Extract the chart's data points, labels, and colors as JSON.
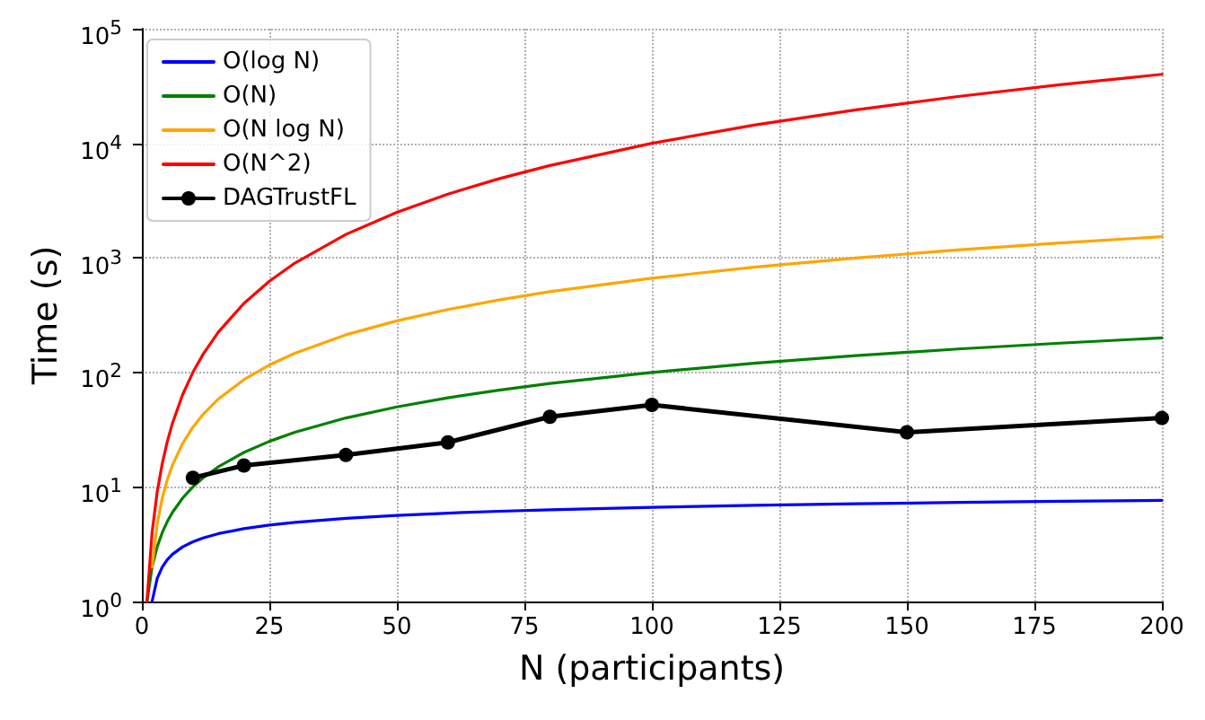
{
  "chart_data": {
    "type": "line",
    "xlabel": "N (participants)",
    "ylabel": "Time (s)",
    "log": "y",
    "grid": true,
    "legend": "top left",
    "marker": "none",
    "line_style": "solid",
    "xlim": [
      0,
      200
    ],
    "xticks": [
      0,
      25,
      50,
      75,
      100,
      125,
      150,
      175,
      200
    ],
    "ylim": [
      1,
      100000
    ],
    "yticks": [
      {
        "value": 1,
        "label": "10$^{0}$"
      },
      {
        "value": 10,
        "label": "10$^{1}$"
      },
      {
        "value": 100,
        "label": "10$^{2}$"
      },
      {
        "value": 1000,
        "label": "10$^{3}$"
      },
      {
        "value": 10000,
        "label": "10$^{4}$"
      },
      {
        "value": 100000,
        "label": "10$^{5}$"
      }
    ],
    "series": [
      {
        "name": "O(log N)",
        "color": "#0000ff",
        "x": [
          2,
          3,
          4,
          5,
          6,
          8,
          10,
          12,
          15,
          20,
          25,
          30,
          40,
          50,
          60,
          70,
          80,
          100,
          120,
          140,
          160,
          180,
          200
        ],
        "values": [
          1,
          1.585,
          2,
          2.32,
          2.585,
          3,
          3.32,
          3.585,
          3.91,
          4.32,
          4.64,
          4.91,
          5.32,
          5.64,
          5.91,
          6.13,
          6.32,
          6.64,
          6.91,
          7.13,
          7.32,
          7.49,
          7.64
        ]
      },
      {
        "name": "O(N)",
        "color": "#008000",
        "x": [
          1,
          2,
          3,
          4,
          5,
          6,
          8,
          10,
          12,
          15,
          20,
          25,
          30,
          40,
          50,
          60,
          70,
          80,
          100,
          120,
          140,
          160,
          180,
          200
        ],
        "values": [
          1,
          2,
          3,
          4,
          5,
          6,
          8,
          10,
          12,
          15,
          20,
          25,
          30,
          40,
          50,
          60,
          70,
          80,
          100,
          120,
          140,
          160,
          180,
          200
        ]
      },
      {
        "name": "O(N log N)",
        "color": "#ffa500",
        "x": [
          2,
          3,
          4,
          5,
          6,
          8,
          10,
          12,
          15,
          20,
          25,
          30,
          40,
          50,
          60,
          70,
          80,
          100,
          120,
          140,
          160,
          180,
          200
        ],
        "values": [
          2,
          4.75,
          8,
          11.6,
          15.5,
          24,
          33.2,
          43,
          58.6,
          86.4,
          116,
          147,
          213,
          282,
          354,
          429,
          506,
          664,
          829,
          998,
          1171,
          1349,
          1529
        ]
      },
      {
        "name": "O(N^2)",
        "color": "#ff0000",
        "x": [
          1,
          2,
          3,
          4,
          5,
          6,
          8,
          10,
          12,
          15,
          20,
          25,
          30,
          40,
          50,
          60,
          70,
          80,
          100,
          120,
          140,
          160,
          180,
          200
        ],
        "values": [
          1,
          4,
          9,
          16,
          25,
          36,
          64,
          100,
          144,
          225,
          400,
          625,
          900,
          1600,
          2500,
          3600,
          4900,
          6400,
          10000,
          14400,
          19600,
          25600,
          32400,
          40000
        ]
      },
      {
        "name": "DAGTrustFL",
        "color": "#000000",
        "marker": "circle",
        "x": [
          10,
          20,
          40,
          60,
          80,
          100,
          150,
          200
        ],
        "values": [
          12,
          15.4,
          19,
          24.5,
          41,
          52,
          30,
          40
        ]
      }
    ]
  }
}
